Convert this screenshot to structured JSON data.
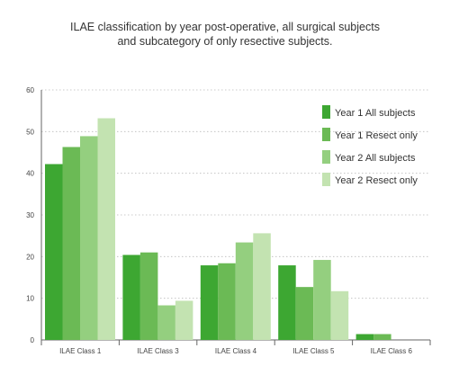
{
  "chart_data": {
    "type": "bar",
    "title_lines": [
      "ILAE classification by year post-operative, all surgical subjects",
      "and subcategory of only resective subjects."
    ],
    "categories": [
      "ILAE Class 1",
      "ILAE Class 3",
      "ILAE Class 4",
      "ILAE Class 5",
      "ILAE Class 6"
    ],
    "series": [
      {
        "name": "Year 1 All subjects",
        "color": "#3da732",
        "values": [
          42.2,
          20.4,
          17.9,
          17.9,
          1.4
        ]
      },
      {
        "name": "Year 1 Resect only",
        "color": "#6bba55",
        "values": [
          46.3,
          21.0,
          18.4,
          12.7,
          1.4
        ]
      },
      {
        "name": "Year 2 All subjects",
        "color": "#94cf7f",
        "values": [
          48.9,
          8.3,
          23.4,
          19.2,
          null
        ]
      },
      {
        "name": "Year 2 Resect only",
        "color": "#c3e3b1",
        "values": [
          53.2,
          9.4,
          25.6,
          11.7,
          null
        ]
      }
    ],
    "ylim": [
      0,
      60
    ],
    "yticks": [
      0,
      10,
      20,
      30,
      40,
      50,
      60
    ],
    "grid": "dotted-horizontal",
    "legend_position": "right"
  }
}
